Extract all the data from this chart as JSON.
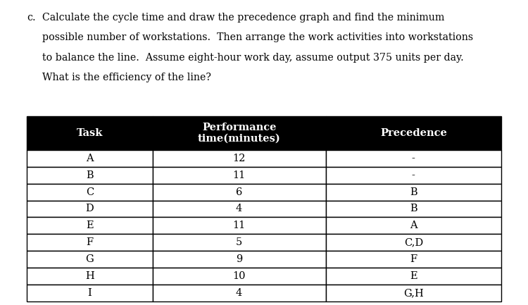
{
  "question_label": "c.",
  "line1": "Calculate the cycle time and draw the precedence graph and find the minimum",
  "line2": "possible number of workstations.  Then arrange the work activities into workstations",
  "line3": "to balance the line.  Assume eight-hour work day, assume output 375 units per day.",
  "line4": "What is the efficiency of the line?",
  "header": [
    "Task",
    "Performance\ntime(minutes)",
    "Precedence"
  ],
  "rows": [
    [
      "A",
      "12",
      "-"
    ],
    [
      "B",
      "11",
      "-"
    ],
    [
      "C",
      "6",
      "B"
    ],
    [
      "D",
      "4",
      "B"
    ],
    [
      "E",
      "11",
      "A"
    ],
    [
      "F",
      "5",
      "C,D"
    ],
    [
      "G",
      "9",
      "F"
    ],
    [
      "H",
      "10",
      "E"
    ],
    [
      "I",
      "4",
      "G,H"
    ]
  ],
  "header_bg": "#000000",
  "header_fg": "#ffffff",
  "row_bg": "#ffffff",
  "row_fg": "#000000",
  "border_color": "#000000",
  "font_family": "DejaVu Serif",
  "question_fontsize": 10.2,
  "header_fontsize": 10.5,
  "cell_fontsize": 10.5,
  "fig_width": 7.5,
  "fig_height": 4.33,
  "dpi": 100
}
